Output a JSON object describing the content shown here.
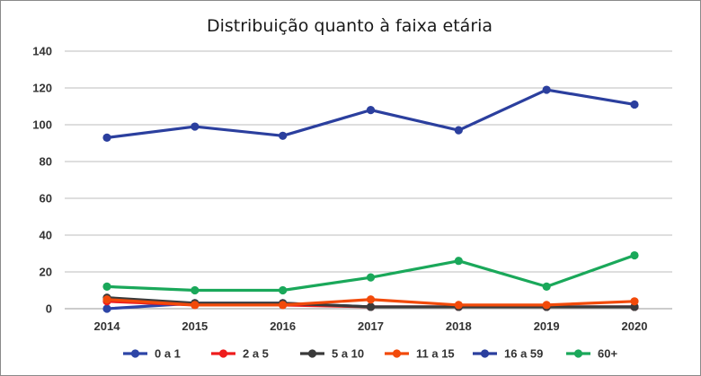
{
  "chart_data": {
    "type": "line",
    "title": "Distribuição quanto à faixa etária",
    "xlabel": "",
    "ylabel": "",
    "categories": [
      "2014",
      "2015",
      "2016",
      "2017",
      "2018",
      "2019",
      "2020"
    ],
    "ylim": [
      0,
      140
    ],
    "yticks": [
      "0",
      "20",
      "40",
      "60",
      "80",
      "100",
      "120",
      "140"
    ],
    "grid": true,
    "legend_position": "bottom",
    "series": [
      {
        "name": "0 a 1",
        "color": "#2d45a6",
        "values": [
          0,
          3,
          3,
          1,
          1,
          1,
          1
        ]
      },
      {
        "name": "2 a 5",
        "color": "#ee1c1c",
        "values": [
          4,
          2,
          2,
          1,
          1,
          1,
          1
        ]
      },
      {
        "name": "5 a 10",
        "color": "#3a3a3a",
        "values": [
          6,
          3,
          3,
          1,
          1,
          1,
          1
        ]
      },
      {
        "name": "11 a 15",
        "color": "#f24a0a",
        "values": [
          5,
          2,
          2,
          5,
          2,
          2,
          4
        ]
      },
      {
        "name": "16 a 59",
        "color": "#2b3f9e",
        "values": [
          93,
          99,
          94,
          108,
          97,
          119,
          111
        ]
      },
      {
        "name": "60+",
        "color": "#1aa85a",
        "values": [
          12,
          10,
          10,
          17,
          26,
          12,
          29
        ]
      }
    ]
  }
}
